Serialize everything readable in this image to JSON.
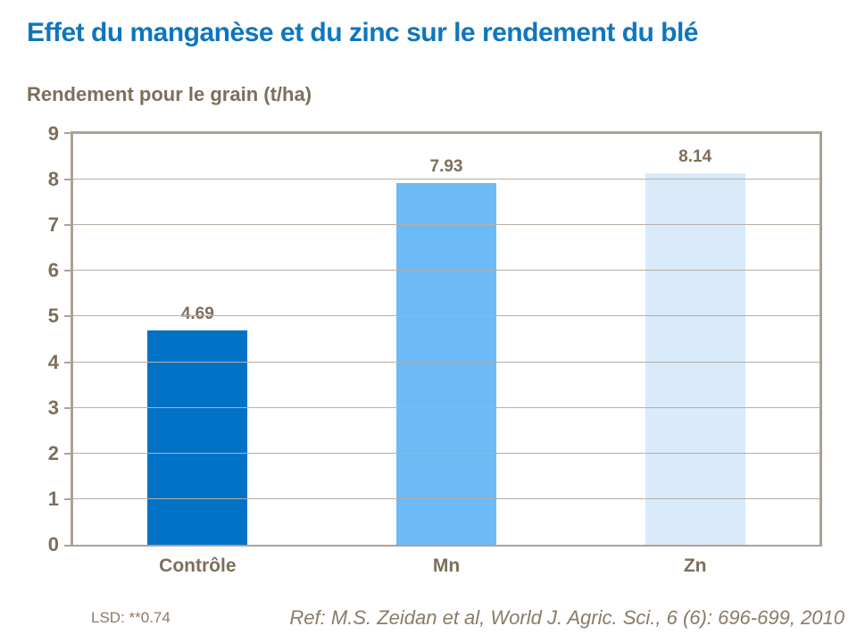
{
  "chart_data": {
    "type": "bar",
    "title": "Effet du manganèse et du zinc sur le rendement du blé",
    "ylabel": "Rendement pour le grain (t/ha)",
    "xlabel": "",
    "categories": [
      "Contrôle",
      "Mn",
      "Zn"
    ],
    "values": [
      4.69,
      7.93,
      8.14
    ],
    "data_labels": [
      "4.69",
      "7.93",
      "8.14"
    ],
    "bar_colors": [
      "#0073C7",
      "#6CBBF7",
      "#D9EAFB"
    ],
    "ylim": [
      0,
      9
    ],
    "yticks": [
      0,
      1,
      2,
      3,
      4,
      5,
      6,
      7,
      8,
      9
    ],
    "grid": "horizontal",
    "legend": false,
    "annotations": [
      "LSD: **0.74",
      "Ref: M.S. Zeidan et al, World J. Agric. Sci., 6 (6): 696-699, 2010"
    ]
  },
  "colors": {
    "title_blue": "#0F76BE",
    "label_brown": "#7D6E5B",
    "footer_brown": "#8A7B69",
    "axis_border": "#ABA295",
    "gridline": "#B7AEA3",
    "background": "#FFFFFF"
  }
}
